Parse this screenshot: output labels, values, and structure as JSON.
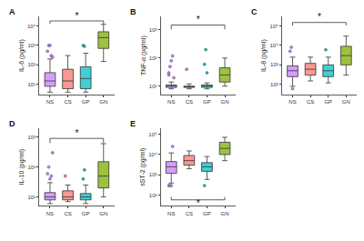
{
  "chart_data": [
    {
      "type": "box",
      "title": "A",
      "y_label": "IL-6 (pg/ml)",
      "categories": [
        "NS",
        "CS",
        "GP",
        "GN"
      ],
      "colors": [
        "#c77cff",
        "#f8766d",
        "#00bfc4",
        "#7cae00"
      ],
      "log": "y",
      "grid": false,
      "ylim": [
        3,
        30000
      ],
      "yticks": [
        {
          "value": 10,
          "label": "10¹"
        },
        {
          "value": 100,
          "label": "10²"
        },
        {
          "value": 1000,
          "label": "10³"
        },
        {
          "value": 10000,
          "label": "10⁴"
        }
      ],
      "q1": [
        8,
        6,
        6,
        700
      ],
      "median": [
        15,
        15,
        20,
        2500
      ],
      "q3": [
        40,
        60,
        80,
        5000
      ],
      "whisker_low": [
        4,
        4,
        4,
        150
      ],
      "whisker_high": [
        200,
        300,
        400,
        12000
      ],
      "points": [
        [
          500,
          1000,
          1000,
          300,
          250
        ],
        [],
        [
          1000,
          900
        ],
        []
      ],
      "annotations": [
        {
          "text": "*",
          "from": "NS",
          "to": "GN",
          "y": 18000
        }
      ]
    },
    {
      "type": "box",
      "title": "B",
      "y_label": "TNF-α (pg/ml)",
      "categories": [
        "NS",
        "CS",
        "GP",
        "GN"
      ],
      "colors": [
        "#c77cff",
        "#f8766d",
        "#00bfc4",
        "#7cae00"
      ],
      "log": "y",
      "grid": false,
      "ylim": [
        5,
        3000
      ],
      "yticks": [
        {
          "value": 10,
          "label": "10¹"
        },
        {
          "value": 100,
          "label": "10²"
        },
        {
          "value": 1000,
          "label": "10³"
        }
      ],
      "q1": [
        9,
        9,
        9,
        14
      ],
      "median": [
        10,
        9.5,
        10,
        25
      ],
      "q3": [
        11,
        10,
        11,
        45
      ],
      "whisker_low": [
        8,
        8,
        8,
        10
      ],
      "whisker_high": [
        14,
        12,
        13,
        100
      ],
      "points": [
        [
          30,
          50,
          80,
          120,
          20,
          25
        ],
        [
          40
        ],
        [
          60,
          200,
          30
        ],
        []
      ],
      "annotations": [
        {
          "text": "*",
          "from": "NS",
          "to": "GN",
          "y": 1500
        }
      ]
    },
    {
      "type": "box",
      "title": "C",
      "y_label": "IL-8 (pg/ml)",
      "categories": [
        "NS",
        "CS",
        "GP",
        "GN"
      ],
      "colors": [
        "#c77cff",
        "#f8766d",
        "#00bfc4",
        "#7cae00"
      ],
      "log": "y",
      "grid": false,
      "ylim": [
        30,
        300000
      ],
      "yticks": [
        {
          "value": 100,
          "label": "10²"
        },
        {
          "value": 1000,
          "label": "10³"
        },
        {
          "value": 10000,
          "label": "10⁴"
        },
        {
          "value": 100000,
          "label": "10⁵"
        }
      ],
      "q1": [
        250,
        300,
        250,
        1000
      ],
      "median": [
        500,
        600,
        500,
        3000
      ],
      "q3": [
        900,
        1200,
        1000,
        9000
      ],
      "whisker_low": [
        80,
        150,
        120,
        300
      ],
      "whisker_high": [
        2500,
        2500,
        2500,
        30000
      ],
      "points": [
        [
          5000,
          8000,
          60
        ],
        [],
        [
          6000
        ],
        []
      ],
      "annotations": [
        {
          "text": "*",
          "from": "NS",
          "to": "GN",
          "y": 150000
        }
      ]
    },
    {
      "type": "box",
      "title": "D",
      "y_label": "IL-10 (pg/ml)",
      "categories": [
        "NS",
        "CS",
        "GP",
        "GN"
      ],
      "colors": [
        "#c77cff",
        "#f8766d",
        "#00bfc4",
        "#7cae00"
      ],
      "log": "y",
      "grid": false,
      "ylim": [
        5,
        2000
      ],
      "yticks": [
        {
          "value": 10,
          "label": "10¹"
        },
        {
          "value": 100,
          "label": "10²"
        },
        {
          "value": 1000,
          "label": "10³"
        }
      ],
      "q1": [
        8,
        8,
        8,
        20
      ],
      "median": [
        10,
        10,
        10,
        50
      ],
      "q3": [
        14,
        16,
        13,
        150
      ],
      "whisker_low": [
        6,
        7,
        6,
        10
      ],
      "whisker_high": [
        30,
        25,
        25,
        600
      ],
      "points": [
        [
          60,
          100,
          40,
          50,
          300
        ],
        [
          50
        ],
        [
          40,
          80
        ],
        []
      ],
      "annotations": [
        {
          "text": "*",
          "from": "NS",
          "to": "GN",
          "y": 900
        }
      ]
    },
    {
      "type": "box",
      "title": "E",
      "y_label": "sST-2 (pg/ml)",
      "categories": [
        "NS",
        "CS",
        "GP",
        "GN"
      ],
      "colors": [
        "#c77cff",
        "#f8766d",
        "#00bfc4",
        "#7cae00"
      ],
      "log": "y",
      "grid": false,
      "ylim": [
        30,
        200000
      ],
      "yticks": [
        {
          "value": 100,
          "label": "10²"
        },
        {
          "value": 1000,
          "label": "10³"
        },
        {
          "value": 10000,
          "label": "10⁴"
        },
        {
          "value": 100000,
          "label": "10⁵"
        }
      ],
      "q1": [
        1200,
        3000,
        1500,
        10000
      ],
      "median": [
        2500,
        5000,
        2500,
        20000
      ],
      "q3": [
        4500,
        9000,
        4000,
        40000
      ],
      "whisker_low": [
        400,
        2000,
        600,
        5000
      ],
      "whisker_high": [
        12000,
        15000,
        8000,
        70000
      ],
      "points": [
        [
          300,
          300,
          300,
          25000
        ],
        [],
        [
          300
        ],
        []
      ],
      "annotations": [
        {
          "text": "*",
          "from": "NS",
          "to": "GN",
          "y": 60
        }
      ]
    }
  ]
}
